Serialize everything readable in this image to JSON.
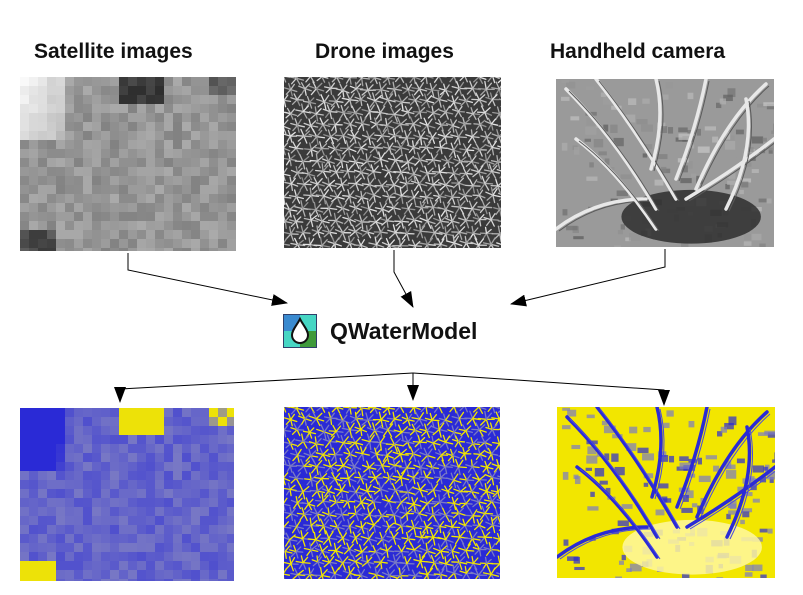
{
  "inputs": [
    {
      "label": "Satellite images",
      "style": "coarse-grayscale"
    },
    {
      "label": "Drone images",
      "style": "dense-canopy-grayscale"
    },
    {
      "label": "Handheld camera",
      "style": "leaf-closeup-grayscale"
    }
  ],
  "model": {
    "name": "QWaterModel",
    "icon": "water-drop-icon"
  },
  "outputs": [
    {
      "style": "coarse-water-map"
    },
    {
      "style": "canopy-water-map"
    },
    {
      "style": "leaf-water-map"
    }
  ],
  "colors": {
    "map_blue": "#2a2ad6",
    "map_lavender": "#7a7ac4",
    "map_yellow": "#f2e600",
    "icon_blue": "#3a8ad0",
    "icon_green": "#3f9a3a",
    "icon_cyan": "#46d6c4"
  }
}
